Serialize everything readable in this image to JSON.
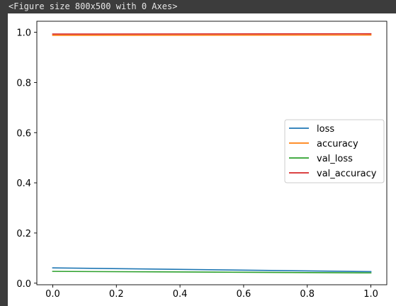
{
  "output": {
    "caption": "<Figure size 800x500 with 0 Axes>"
  },
  "colors": {
    "loss": "#1f77b4",
    "accuracy": "#ff7f0e",
    "val_loss": "#2ca02c",
    "val_accuracy": "#d62728",
    "frame": "#3c3c3c",
    "caption_text": "#e6e6e6"
  },
  "chart_data": {
    "type": "line",
    "x": [
      0.0,
      1.0
    ],
    "series": [
      {
        "name": "loss",
        "values": [
          0.061,
          0.046
        ],
        "color": "#1f77b4"
      },
      {
        "name": "accuracy",
        "values": [
          0.988,
          0.989
        ],
        "color": "#ff7f0e"
      },
      {
        "name": "val_loss",
        "values": [
          0.047,
          0.041
        ],
        "color": "#2ca02c"
      },
      {
        "name": "val_accuracy",
        "values": [
          0.993,
          0.994
        ],
        "color": "#d62728"
      }
    ],
    "xlim": [
      -0.05,
      1.05
    ],
    "ylim": [
      -0.0063,
      1.044
    ],
    "xticks": [
      0.0,
      0.2,
      0.4,
      0.6,
      0.8,
      1.0
    ],
    "xtick_labels": [
      "0.0",
      "0.2",
      "0.4",
      "0.6",
      "0.8",
      "1.0"
    ],
    "yticks": [
      0.0,
      0.2,
      0.4,
      0.6,
      0.8,
      1.0
    ],
    "ytick_labels": [
      "0.0",
      "0.2",
      "0.4",
      "0.6",
      "0.8",
      "1.0"
    ],
    "grid": false,
    "legend_position": "center-right",
    "title": "",
    "xlabel": "",
    "ylabel": ""
  }
}
